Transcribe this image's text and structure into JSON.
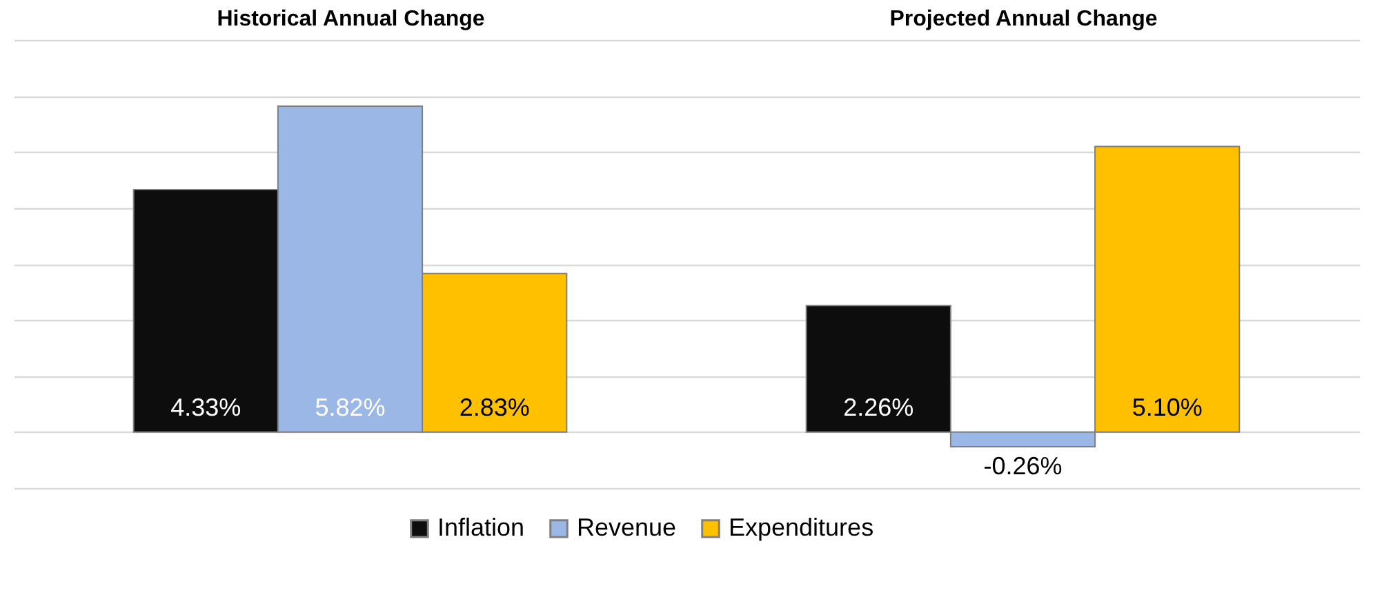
{
  "chart_data": {
    "type": "bar",
    "categories": [
      "Historical Annual Change",
      "Projected Annual Change"
    ],
    "series": [
      {
        "name": "Inflation",
        "color": "#0d0d0d",
        "values": [
          4.33,
          2.26
        ],
        "value_labels": [
          "4.33%",
          "2.26%"
        ]
      },
      {
        "name": "Revenue",
        "color": "#9bb7e6",
        "values": [
          5.82,
          -0.26
        ],
        "value_labels": [
          "5.82%",
          "-0.26%"
        ]
      },
      {
        "name": "Expenditures",
        "color": "#ffc000",
        "values": [
          2.83,
          5.1
        ],
        "value_labels": [
          "2.83%",
          "5.10%"
        ]
      }
    ],
    "ylim": [
      -1,
      7
    ],
    "yticks": [
      {
        "value": -1,
        "label": null
      },
      {
        "value": 0,
        "label": null
      },
      {
        "value": 1,
        "label": null
      },
      {
        "value": 2,
        "label": null
      },
      {
        "value": 3,
        "label": null
      },
      {
        "value": 4,
        "label": null
      },
      {
        "value": 5,
        "label": null
      },
      {
        "value": 6,
        "label": null
      },
      {
        "value": 7,
        "label": null
      }
    ],
    "grid": "y",
    "legend": "bottom",
    "tick_labels": "x"
  }
}
